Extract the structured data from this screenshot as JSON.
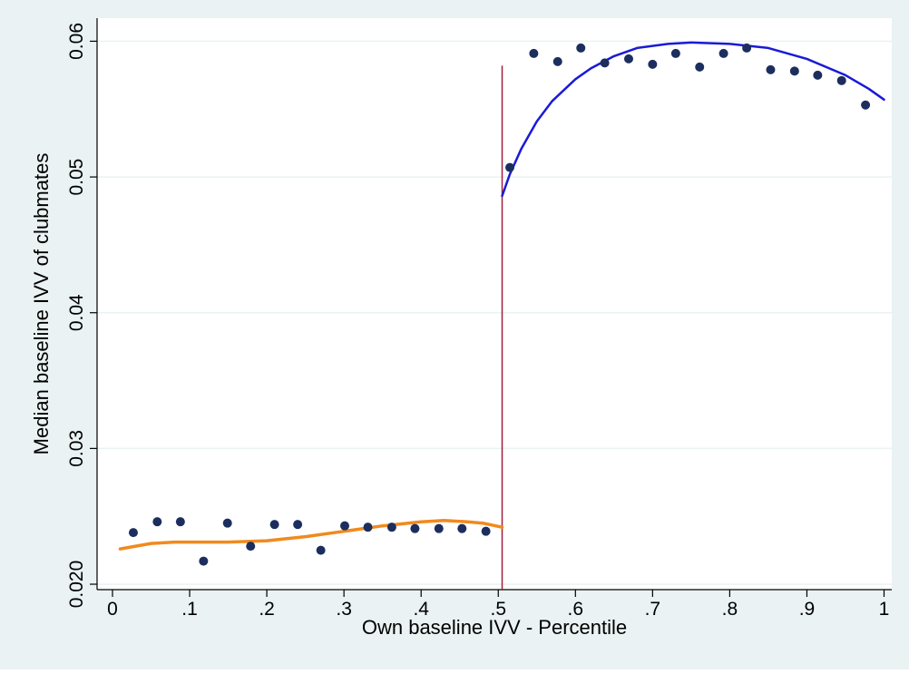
{
  "chart_data": {
    "type": "scatter",
    "xlabel": "Own baseline IVV - Percentile",
    "ylabel": "Median baseline IVV of clubmates",
    "x_ticks": [
      {
        "value": 0,
        "label": "0"
      },
      {
        "value": 0.1,
        "label": ".1"
      },
      {
        "value": 0.2,
        "label": ".2"
      },
      {
        "value": 0.3,
        "label": ".3"
      },
      {
        "value": 0.4,
        "label": ".4"
      },
      {
        "value": 0.5,
        "label": ".5"
      },
      {
        "value": 0.6,
        "label": ".6"
      },
      {
        "value": 0.7,
        "label": ".7"
      },
      {
        "value": 0.8,
        "label": ".8"
      },
      {
        "value": 0.9,
        "label": ".9"
      },
      {
        "value": 1,
        "label": "1"
      }
    ],
    "y_ticks": [
      {
        "value": 0.02,
        "label": "0.020"
      },
      {
        "value": 0.03,
        "label": "0.03"
      },
      {
        "value": 0.04,
        "label": "0.04"
      },
      {
        "value": 0.05,
        "label": "0.05"
      },
      {
        "value": 0.06,
        "label": "0.06"
      }
    ],
    "xlim": [
      -0.02,
      1.01
    ],
    "ylim": [
      0.0196,
      0.0617
    ],
    "grid": "horizontal",
    "cutoff": {
      "x": 0.505,
      "y_top": 0.0582,
      "color": "#a0213a"
    },
    "scatter_points": {
      "color": "#1c2e5e",
      "x": [
        0.027,
        0.058,
        0.088,
        0.118,
        0.149,
        0.179,
        0.21,
        0.24,
        0.27,
        0.301,
        0.331,
        0.362,
        0.392,
        0.423,
        0.453,
        0.484,
        0.515,
        0.546,
        0.577,
        0.607,
        0.638,
        0.669,
        0.7,
        0.73,
        0.761,
        0.792,
        0.822,
        0.853,
        0.884,
        0.914,
        0.945,
        0.976
      ],
      "y": [
        0.0238,
        0.0246,
        0.0246,
        0.0217,
        0.0245,
        0.0228,
        0.0244,
        0.0244,
        0.0225,
        0.0243,
        0.0242,
        0.0242,
        0.0241,
        0.0241,
        0.0241,
        0.0239,
        0.0507,
        0.0591,
        0.0585,
        0.0595,
        0.0584,
        0.0587,
        0.0583,
        0.0591,
        0.0581,
        0.0591,
        0.0595,
        0.0579,
        0.0578,
        0.0575,
        0.0571,
        0.0553
      ]
    },
    "series": [
      {
        "color": "#f08a1e",
        "x": [
          0.01,
          0.03,
          0.05,
          0.08,
          0.11,
          0.15,
          0.2,
          0.25,
          0.3,
          0.35,
          0.4,
          0.43,
          0.46,
          0.48,
          0.505
        ],
        "y": [
          0.0226,
          0.0228,
          0.023,
          0.0231,
          0.0231,
          0.0231,
          0.0232,
          0.0235,
          0.0239,
          0.0243,
          0.0246,
          0.0247,
          0.0246,
          0.0245,
          0.0242
        ]
      },
      {
        "color": "#1a1ad6",
        "x": [
          0.505,
          0.515,
          0.53,
          0.55,
          0.57,
          0.6,
          0.62,
          0.65,
          0.68,
          0.72,
          0.75,
          0.8,
          0.85,
          0.9,
          0.95,
          0.98,
          1.0
        ],
        "y": [
          0.0486,
          0.0502,
          0.0521,
          0.0541,
          0.0556,
          0.0572,
          0.058,
          0.0589,
          0.0595,
          0.0598,
          0.0599,
          0.0598,
          0.0595,
          0.0587,
          0.0575,
          0.0565,
          0.0557
        ]
      }
    ]
  },
  "style": {
    "outer_bg": "#eaf2f3",
    "plot_bg": "#ffffff",
    "grid_color": "#eaf2f3",
    "axis_color": "#000000"
  }
}
